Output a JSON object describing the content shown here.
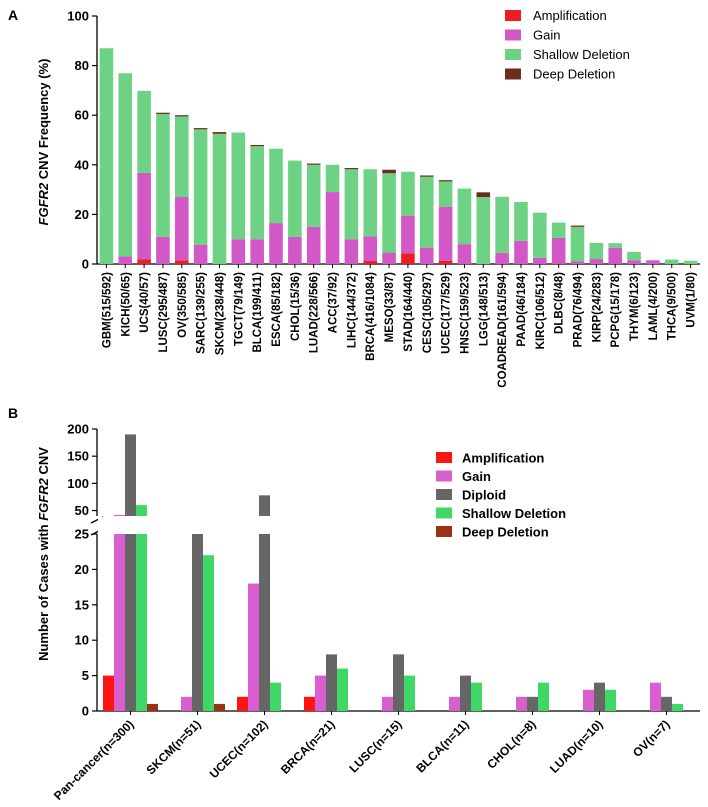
{
  "panels": {
    "a": "A",
    "b": "B"
  },
  "chart_data": [
    {
      "type": "bar",
      "stacked": true,
      "title": "",
      "xlabel": "",
      "ylabel_italic": "FGFR2",
      "ylabel_rest": " CNV Frequency (%)",
      "ylim": [
        0,
        100
      ],
      "yticks": [
        0,
        20,
        40,
        60,
        80,
        100
      ],
      "legend_position": "top-right",
      "categories": [
        "GBM(515/592)",
        "KICH(50/65)",
        "UCS(40/57)",
        "LUSC(295/487)",
        "OV(350/585)",
        "SARC(139/255)",
        "SKCM(238/448)",
        "TGCT(79/149)",
        "BLCA(199/411)",
        "ESCA(85/182)",
        "CHOL(15/36)",
        "LUAD(228/566)",
        "ACC(37/92)",
        "LIHC(144/372)",
        "BRCA(416/1084)",
        "MESO(33/87)",
        "STAD(164/440)",
        "CESC(105/297)",
        "UCEC(177/529)",
        "HNSC(159/523)",
        "LGG(148/513)",
        "COADREAD(161/594)",
        "PAAD(46/184)",
        "KIRC(106/512)",
        "DLBC(8/48)",
        "PRAD(76/494)",
        "KIRP(24/283)",
        "PCPG(15/178)",
        "THYM(6/123)",
        "LAML(4/200)",
        "THCA(9/500)",
        "UVM(1/80)"
      ],
      "series": [
        {
          "name": "Amplification",
          "color": "#ee1c25",
          "values": [
            0,
            0,
            1.8,
            0,
            1.5,
            0,
            0,
            0,
            0,
            0,
            0,
            0,
            0,
            0,
            1.2,
            0,
            4.3,
            0,
            1.3,
            0,
            0,
            0,
            0,
            0,
            0,
            0,
            0,
            0,
            0,
            0,
            0,
            0
          ]
        },
        {
          "name": "Gain",
          "color": "#d158c6",
          "values": [
            0,
            3.1,
            35,
            11,
            25.5,
            7.8,
            0,
            10,
            10,
            16.5,
            11,
            15,
            29,
            10,
            10,
            4.6,
            15.2,
            6.6,
            21.8,
            8,
            0,
            4.5,
            9.3,
            2.5,
            10.5,
            1,
            2,
            6.5,
            1.5,
            1.5,
            0,
            0
          ]
        },
        {
          "name": "Shallow Deletion",
          "color": "#6dd283",
          "values": [
            87,
            73.8,
            33,
            49.5,
            32.5,
            46.5,
            52.5,
            43,
            37.5,
            30,
            30.7,
            25,
            11,
            28.2,
            27,
            32,
            17.7,
            28.6,
            10.2,
            22.4,
            27,
            22.6,
            15.7,
            18.2,
            6.2,
            14,
            6.5,
            1.9,
            3.4,
            0,
            1.8,
            1.3
          ]
        },
        {
          "name": "Deep Deletion",
          "color": "#6b2e1c",
          "values": [
            0,
            0,
            0,
            0.5,
            0.5,
            0.5,
            0.7,
            0,
            0.5,
            0,
            0,
            0.5,
            0,
            0.5,
            0,
            1.4,
            0,
            0.5,
            0.5,
            0,
            1.9,
            0,
            0,
            0,
            0,
            0.5,
            0,
            0,
            0,
            0,
            0,
            0
          ]
        }
      ]
    },
    {
      "type": "bar",
      "grouped": true,
      "broken_axis": true,
      "title": "",
      "xlabel": "",
      "ylabel_rest": "Number of Cases with ",
      "ylabel_italic": "FGFR2",
      "ylabel_tail": " CNV",
      "ylim_lower": [
        0,
        25
      ],
      "ylim_upper": [
        40,
        200
      ],
      "yticks_lower": [
        0,
        5,
        10,
        15,
        20,
        25
      ],
      "yticks_upper": [
        50,
        100,
        150,
        200
      ],
      "legend_position": "top-right",
      "categories": [
        "Pan-cancer(n=300)",
        "SKCM(n=51)",
        "UCEC(n=102)",
        "BRCA(n=21)",
        "LUSC(n=15)",
        "BLCA(n=11)",
        "CHOL(n=8)",
        "LUAD(n=10)",
        "OV(n=7)"
      ],
      "series": [
        {
          "name": "Amplification",
          "color": "#ff1414",
          "values": [
            5,
            0,
            2,
            2,
            0,
            0,
            0,
            0,
            0
          ]
        },
        {
          "name": "Gain",
          "color": "#d95fd1",
          "values": [
            42,
            2,
            18,
            5,
            2,
            2,
            2,
            3,
            4
          ]
        },
        {
          "name": "Diploid",
          "color": "#666666",
          "values": [
            190,
            26,
            78,
            8,
            8,
            5,
            2,
            4,
            2
          ]
        },
        {
          "name": "Shallow Deletion",
          "color": "#3fd766",
          "values": [
            60,
            22,
            4,
            6,
            5,
            4,
            4,
            3,
            1
          ]
        },
        {
          "name": "Deep Deletion",
          "color": "#9a3316",
          "values": [
            1,
            1,
            0,
            0,
            0,
            0,
            0,
            0,
            0
          ]
        }
      ]
    }
  ]
}
